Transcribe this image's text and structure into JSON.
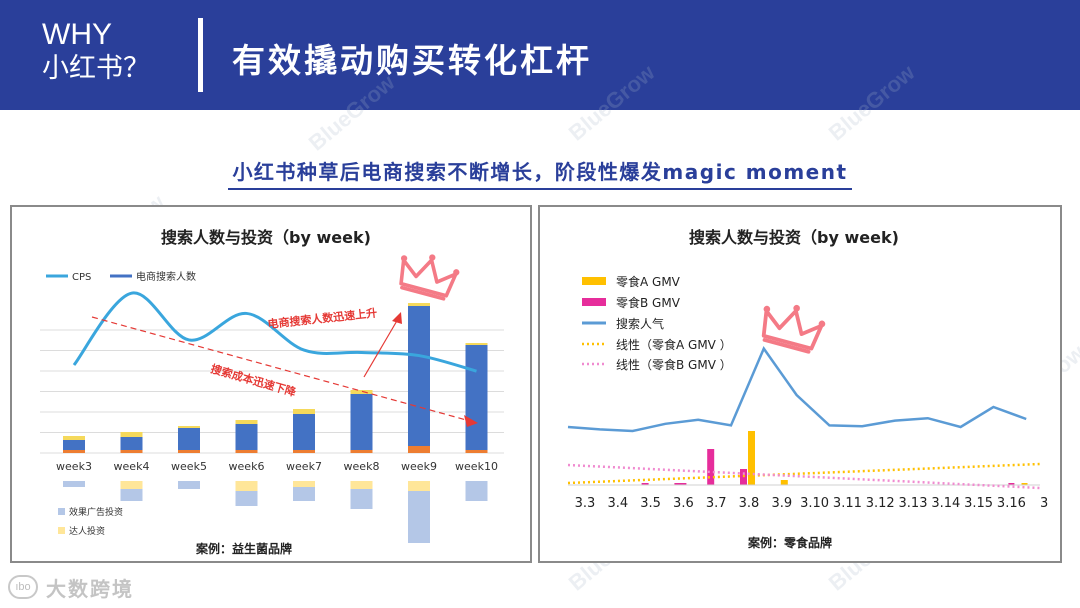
{
  "header": {
    "why_line1": "WHY",
    "why_line2": "小红书？",
    "title": "有效撬动购买转化杠杆"
  },
  "subtitle": "小红书种草后电商搜索不断增长，阶段性爆发magic moment",
  "watermark": "BlueGrow",
  "footer": {
    "logo_mark": "ıbo",
    "logo_text": "大数跨境"
  },
  "colors": {
    "header_bg": "#2a3f9a",
    "cps_line": "#3aa6dd",
    "bar_blue": "#4372c4",
    "bar_yellow": "#f5d95b",
    "bar_orange": "#ed7d31",
    "neg_blue": "#b4c7e7",
    "neg_yellow": "#ffe699",
    "trend_red": "#e53935",
    "crown": "#f47a86",
    "snack_a": "#ffc000",
    "snack_b": "#e62d9b",
    "search_line": "#5b9bd5"
  },
  "chart_data": [
    {
      "type": "bar",
      "title": "搜索人数与投资（by week)",
      "caption": "案例：益生菌品牌",
      "legend_top": [
        "CPS",
        "电商搜索人数"
      ],
      "legend_bottom": [
        "效果广告投资",
        "达人投资"
      ],
      "categories": [
        "week3",
        "week4",
        "week5",
        "week6",
        "week7",
        "week8",
        "week9",
        "week10"
      ],
      "series": [
        {
          "name": "电商搜索人数",
          "values": [
            10,
            13,
            22,
            26,
            36,
            56,
            140,
            105
          ]
        },
        {
          "name": "达人投资",
          "values": [
            4,
            5,
            2,
            4,
            5,
            4,
            3,
            2
          ]
        },
        {
          "name": "效果广告投资",
          "values": [
            -6,
            -12,
            -8,
            -15,
            -14,
            -20,
            -52,
            -20
          ]
        },
        {
          "name": "达人投资",
          "values": [
            0,
            -8,
            0,
            -10,
            -6,
            -8,
            -10,
            0
          ]
        },
        {
          "name": "CPS",
          "values": [
            78,
            128,
            68,
            102,
            55,
            52,
            48,
            28
          ]
        }
      ],
      "annotations": [
        "电商搜索人数迅速上升",
        "搜索成本迅速下降"
      ]
    },
    {
      "type": "bar",
      "title": "搜索人数与投资（by week)",
      "caption": "案例：零食品牌",
      "legend": [
        "零食A GMV",
        "零食B GMV",
        "搜索人气",
        "线性（零食A GMV ）",
        "线性（零食B GMV ）"
      ],
      "categories": [
        "3.3",
        "3.4",
        "3.5",
        "3.6",
        "3.7",
        "3.8",
        "3.9",
        "3.10",
        "3.11",
        "3.12",
        "3.13",
        "3.14",
        "3.15",
        "3.16",
        "3"
      ],
      "series": [
        {
          "name": "零食A GMV",
          "values": [
            0,
            0,
            0,
            0,
            0,
            54,
            5,
            0,
            0,
            0,
            0,
            0,
            0,
            0,
            0
          ]
        },
        {
          "name": "零食B GMV",
          "values": [
            0,
            0,
            2,
            2,
            36,
            16,
            0,
            0,
            0,
            0,
            0,
            0,
            0,
            0,
            0
          ]
        },
        {
          "name": "搜索人气",
          "values": [
            30,
            27,
            25,
            34,
            39,
            32,
            128,
            70,
            32,
            31,
            38,
            41,
            30,
            55,
            40
          ]
        }
      ],
      "trends": [
        {
          "name": "线性（零食A GMV ）",
          "start": 2,
          "end": 15
        },
        {
          "name": "线性（零食B GMV ）",
          "start": 20,
          "end": -3
        }
      ]
    }
  ]
}
